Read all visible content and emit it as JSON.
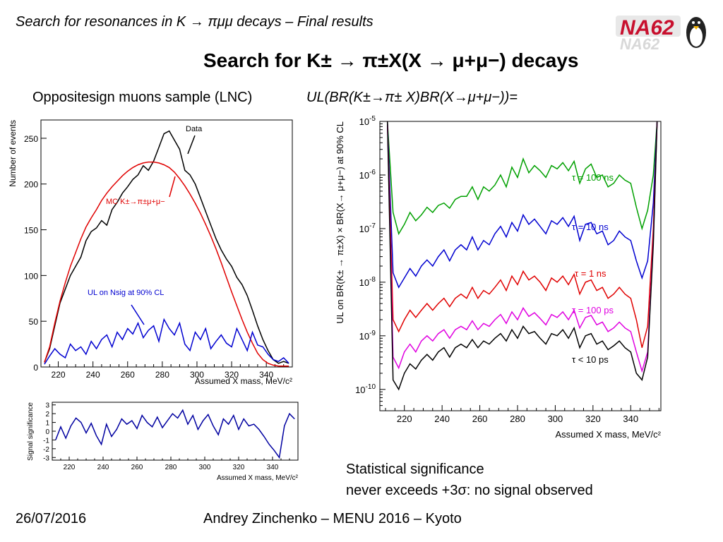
{
  "slide": {
    "header_title": "Search for resonances in K → πμμ decays – Final results",
    "logo_text": "NA62",
    "main_title": "Search for K± → π±X(X → μ+μ−) decays",
    "left_subtitle": "Oppositesign muons sample (LNC)",
    "right_subtitle": "UL(BR(K±→π± X)BR(X→μ+μ−))=",
    "note_line1": "Statistical significance",
    "note_line2": "never exceeds +3σ: no signal observed",
    "footer_date": "26/07/2016",
    "footer_center": "Andrey Zinchenko – MENU 2016 – Kyoto"
  },
  "chart_data": [
    {
      "type": "line",
      "xlabel": "Assumed X mass, MeV/c²",
      "ylabel": "Number of events",
      "xlim": [
        210,
        355
      ],
      "ylim": [
        0,
        270
      ],
      "xticks": [
        220,
        240,
        260,
        280,
        300,
        320,
        340
      ],
      "yticks": [
        0,
        50,
        100,
        150,
        200,
        250
      ],
      "annotations": [
        "Data",
        "MC K±→π±μ+μ−",
        "UL on Nsig at 90% CL"
      ],
      "series": [
        {
          "name": "Data",
          "color": "#000000",
          "x": [
            212,
            215,
            218,
            221,
            224,
            227,
            230,
            233,
            236,
            239,
            242,
            245,
            248,
            251,
            254,
            257,
            260,
            263,
            266,
            269,
            272,
            275,
            278,
            281,
            284,
            287,
            290,
            293,
            296,
            299,
            302,
            305,
            308,
            311,
            314,
            317,
            320,
            323,
            326,
            329,
            332,
            335,
            338,
            341,
            344,
            347,
            350,
            353
          ],
          "y": [
            5,
            20,
            45,
            70,
            85,
            100,
            110,
            120,
            138,
            148,
            152,
            160,
            155,
            172,
            180,
            190,
            197,
            205,
            210,
            220,
            215,
            225,
            240,
            255,
            258,
            248,
            238,
            215,
            210,
            200,
            185,
            170,
            155,
            140,
            128,
            118,
            110,
            98,
            90,
            78,
            62,
            45,
            30,
            18,
            8,
            4,
            6,
            4
          ]
        },
        {
          "name": "MC K±→π±μ+μ−",
          "color": "#e00000",
          "x": [
            212,
            215,
            218,
            221,
            224,
            227,
            230,
            233,
            236,
            239,
            242,
            245,
            248,
            251,
            254,
            257,
            260,
            263,
            266,
            269,
            272,
            275,
            278,
            281,
            284,
            287,
            290,
            293,
            296,
            299,
            302,
            305,
            308,
            311,
            314,
            317,
            320,
            323,
            326,
            329,
            332,
            335,
            338,
            341,
            344,
            347,
            350,
            353
          ],
          "y": [
            5,
            22,
            48,
            72,
            92,
            110,
            125,
            140,
            153,
            163,
            172,
            182,
            190,
            197,
            203,
            209,
            214,
            218,
            221,
            223,
            224,
            224,
            223,
            221,
            218,
            213,
            206,
            198,
            189,
            179,
            168,
            156,
            143,
            129,
            114,
            98,
            82,
            67,
            52,
            38,
            26,
            15,
            8,
            4,
            2,
            1,
            1,
            1
          ]
        },
        {
          "name": "UL on Nsig at 90% CL",
          "color": "#0000d0",
          "x": [
            212,
            215,
            218,
            221,
            224,
            227,
            230,
            233,
            236,
            239,
            242,
            245,
            248,
            251,
            254,
            257,
            260,
            263,
            266,
            269,
            272,
            275,
            278,
            281,
            284,
            287,
            290,
            293,
            296,
            299,
            302,
            305,
            308,
            311,
            314,
            317,
            320,
            323,
            326,
            329,
            332,
            335,
            338,
            341,
            344,
            347,
            350,
            353
          ],
          "y": [
            3,
            12,
            20,
            14,
            10,
            25,
            18,
            22,
            14,
            28,
            20,
            30,
            35,
            22,
            38,
            30,
            42,
            36,
            48,
            32,
            40,
            45,
            28,
            52,
            42,
            35,
            48,
            25,
            18,
            38,
            30,
            42,
            20,
            28,
            35,
            26,
            22,
            42,
            30,
            18,
            38,
            24,
            22,
            14,
            8,
            6,
            10,
            4
          ]
        }
      ]
    },
    {
      "type": "line",
      "xlabel": "Assumed X mass, MeV/c²",
      "ylabel": "Signal significance",
      "xlim": [
        210,
        355
      ],
      "ylim": [
        -3.3,
        3.3
      ],
      "xticks": [
        220,
        240,
        260,
        280,
        300,
        320,
        340
      ],
      "yticks": [
        -3,
        -2,
        -1,
        0,
        1,
        2,
        3
      ],
      "series": [
        {
          "name": "",
          "color": "#0000a0",
          "x": [
            212,
            215,
            218,
            221,
            224,
            227,
            230,
            233,
            236,
            239,
            242,
            245,
            248,
            251,
            254,
            257,
            260,
            263,
            266,
            269,
            272,
            275,
            278,
            281,
            284,
            287,
            290,
            293,
            296,
            299,
            302,
            305,
            308,
            311,
            314,
            317,
            320,
            323,
            326,
            329,
            332,
            335,
            338,
            341,
            344,
            347,
            350,
            353
          ],
          "y": [
            -1.0,
            0.5,
            -0.8,
            0.6,
            1.5,
            1.0,
            -0.2,
            0.9,
            -0.5,
            -1.5,
            0.8,
            -0.6,
            0.2,
            1.4,
            0.8,
            1.2,
            0.3,
            1.8,
            1.0,
            0.5,
            1.6,
            0.4,
            1.2,
            2.0,
            1.5,
            2.4,
            0.8,
            1.8,
            0.2,
            1.2,
            1.9,
            0.6,
            -0.4,
            1.4,
            0.8,
            1.8,
            0.2,
            1.4,
            0.6,
            0.8,
            0.2,
            -0.6,
            -1.5,
            -2.2,
            -3.0,
            0.6,
            2.0,
            1.4
          ]
        }
      ]
    },
    {
      "type": "line",
      "xlabel": "Assumed X mass, MeV/c²",
      "ylabel": "UL on BR(K± → π±X) × BR(X→ μ+μ−) at 90% CL",
      "yscale": "log",
      "xlim": [
        207,
        356
      ],
      "ylim": [
        4e-11,
        1e-05
      ],
      "xticks": [
        220,
        240,
        260,
        280,
        300,
        320,
        340
      ],
      "ytick_labels": [
        "10^-10",
        "10^-9",
        "10^-8",
        "10^-7",
        "10^-6",
        "10^-5"
      ],
      "series": [
        {
          "name": "τ = 100 ns",
          "color": "#00a000",
          "x": [
            211,
            214,
            217,
            220,
            223,
            226,
            229,
            232,
            235,
            238,
            241,
            244,
            247,
            250,
            253,
            256,
            259,
            262,
            265,
            268,
            271,
            274,
            277,
            280,
            283,
            286,
            289,
            292,
            295,
            298,
            301,
            304,
            307,
            310,
            313,
            316,
            319,
            322,
            325,
            328,
            331,
            334,
            337,
            340,
            343,
            346,
            349,
            352,
            354
          ],
          "y": [
            1e-05,
            2e-07,
            8e-08,
            1.2e-07,
            2e-07,
            1.4e-07,
            1.8e-07,
            2.5e-07,
            2e-07,
            2.7e-07,
            3e-07,
            2.4e-07,
            3.5e-07,
            4e-07,
            4e-07,
            6e-07,
            3.5e-07,
            6e-07,
            5e-07,
            6.5e-07,
            1e-06,
            6e-07,
            1.4e-06,
            9e-07,
            2e-06,
            1.1e-06,
            1.5e-06,
            1.2e-06,
            9e-07,
            1.5e-06,
            1.3e-06,
            1.7e-06,
            1.2e-06,
            1.8e-06,
            7e-07,
            1.3e-06,
            1.6e-06,
            9e-07,
            1e-06,
            6e-07,
            7e-07,
            1e-06,
            8e-07,
            7e-07,
            2.5e-07,
            1e-07,
            2.2e-07,
            1e-06,
            1e-05
          ]
        },
        {
          "name": "τ = 10 ns",
          "color": "#0000d0",
          "x": [
            211,
            214,
            217,
            220,
            223,
            226,
            229,
            232,
            235,
            238,
            241,
            244,
            247,
            250,
            253,
            256,
            259,
            262,
            265,
            268,
            271,
            274,
            277,
            280,
            283,
            286,
            289,
            292,
            295,
            298,
            301,
            304,
            307,
            310,
            313,
            316,
            319,
            322,
            325,
            328,
            331,
            334,
            337,
            340,
            343,
            346,
            349,
            352,
            354
          ],
          "y": [
            1e-05,
            1.5e-08,
            8e-09,
            1.2e-08,
            1.8e-08,
            1.3e-08,
            2e-08,
            2.6e-08,
            2e-08,
            3e-08,
            4e-08,
            2.5e-08,
            4e-08,
            5e-08,
            4e-08,
            7e-08,
            4e-08,
            6e-08,
            5e-08,
            8e-08,
            1.1e-07,
            7e-08,
            1.3e-07,
            9e-08,
            1.8e-07,
            1.2e-07,
            1.5e-07,
            1.1e-07,
            8e-08,
            1.4e-07,
            1.2e-07,
            1.6e-07,
            1.1e-07,
            1.7e-07,
            6e-08,
            1.2e-07,
            1.3e-07,
            8e-08,
            9e-08,
            5e-08,
            6e-08,
            9e-08,
            7e-08,
            6e-08,
            2.5e-08,
            1.2e-08,
            2.5e-08,
            3e-07,
            1e-05
          ]
        },
        {
          "name": "τ = 1 ns",
          "color": "#e00000",
          "x": [
            211,
            214,
            217,
            220,
            223,
            226,
            229,
            232,
            235,
            238,
            241,
            244,
            247,
            250,
            253,
            256,
            259,
            262,
            265,
            268,
            271,
            274,
            277,
            280,
            283,
            286,
            289,
            292,
            295,
            298,
            301,
            304,
            307,
            310,
            313,
            316,
            319,
            322,
            325,
            328,
            331,
            334,
            337,
            340,
            343,
            346,
            349,
            352,
            354
          ],
          "y": [
            1e-05,
            2e-09,
            1.2e-09,
            2e-09,
            3e-09,
            2.2e-09,
            3e-09,
            4e-09,
            3e-09,
            4e-09,
            5e-09,
            3.5e-09,
            5e-09,
            6e-09,
            5e-09,
            8e-09,
            5e-09,
            7e-09,
            6e-09,
            8e-09,
            1.1e-08,
            7e-09,
            1.3e-08,
            9e-09,
            1.6e-08,
            1.1e-08,
            1.3e-08,
            1e-08,
            7e-09,
            1.2e-08,
            1e-08,
            1.3e-08,
            9e-09,
            1.4e-08,
            6e-09,
            1e-08,
            1.1e-08,
            7e-09,
            8e-09,
            5e-09,
            6e-09,
            8e-09,
            6e-09,
            5e-09,
            2e-09,
            6e-10,
            1.5e-09,
            1e-07,
            1e-05
          ]
        },
        {
          "name": "τ = 100 ps",
          "color": "#e000e0",
          "x": [
            211,
            214,
            217,
            220,
            223,
            226,
            229,
            232,
            235,
            238,
            241,
            244,
            247,
            250,
            253,
            256,
            259,
            262,
            265,
            268,
            271,
            274,
            277,
            280,
            283,
            286,
            289,
            292,
            295,
            298,
            301,
            304,
            307,
            310,
            313,
            316,
            319,
            322,
            325,
            328,
            331,
            334,
            337,
            340,
            343,
            346,
            349,
            352,
            354
          ],
          "y": [
            1e-05,
            4e-10,
            2.5e-10,
            5e-10,
            7e-10,
            5e-10,
            8e-10,
            1e-09,
            8e-10,
            1.1e-09,
            1.3e-09,
            9e-10,
            1.3e-09,
            1.5e-09,
            1.3e-09,
            1.9e-09,
            1.3e-09,
            1.7e-09,
            1.5e-09,
            2e-09,
            2.5e-09,
            1.7e-09,
            2.8e-09,
            2e-09,
            3.3e-09,
            2.3e-09,
            2.7e-09,
            2.1e-09,
            1.6e-09,
            2.5e-09,
            2.2e-09,
            2.8e-09,
            2e-09,
            3e-09,
            1.4e-09,
            2.2e-09,
            2.4e-09,
            1.6e-09,
            1.8e-09,
            1.2e-09,
            1.4e-09,
            1.8e-09,
            1.4e-09,
            1.2e-09,
            5e-10,
            2.2e-10,
            5e-10,
            6e-08,
            1e-05
          ]
        },
        {
          "name": "τ < 10 ps",
          "color": "#000000",
          "x": [
            211,
            214,
            217,
            220,
            223,
            226,
            229,
            232,
            235,
            238,
            241,
            244,
            247,
            250,
            253,
            256,
            259,
            262,
            265,
            268,
            271,
            274,
            277,
            280,
            283,
            286,
            289,
            292,
            295,
            298,
            301,
            304,
            307,
            310,
            313,
            316,
            319,
            322,
            325,
            328,
            331,
            334,
            337,
            340,
            343,
            346,
            349,
            352,
            354
          ],
          "y": [
            1e-05,
            1.5e-10,
            1e-10,
            2e-10,
            3e-10,
            2.4e-10,
            3.5e-10,
            4.5e-10,
            3.5e-10,
            5e-10,
            6e-10,
            4e-10,
            6e-10,
            7e-10,
            6e-10,
            8.5e-10,
            6e-10,
            8e-10,
            7e-10,
            9e-10,
            1.1e-09,
            8e-10,
            1.3e-09,
            9e-10,
            1.5e-09,
            1.1e-09,
            1.2e-09,
            9e-10,
            7e-10,
            1.1e-09,
            1e-09,
            1.3e-09,
            9e-10,
            1.4e-09,
            6e-10,
            1e-09,
            1.1e-09,
            7e-10,
            8e-10,
            5.5e-10,
            6.5e-10,
            8e-10,
            6e-10,
            5e-10,
            2e-10,
            1.5e-10,
            4e-10,
            5e-08,
            1e-05
          ]
        }
      ]
    }
  ]
}
